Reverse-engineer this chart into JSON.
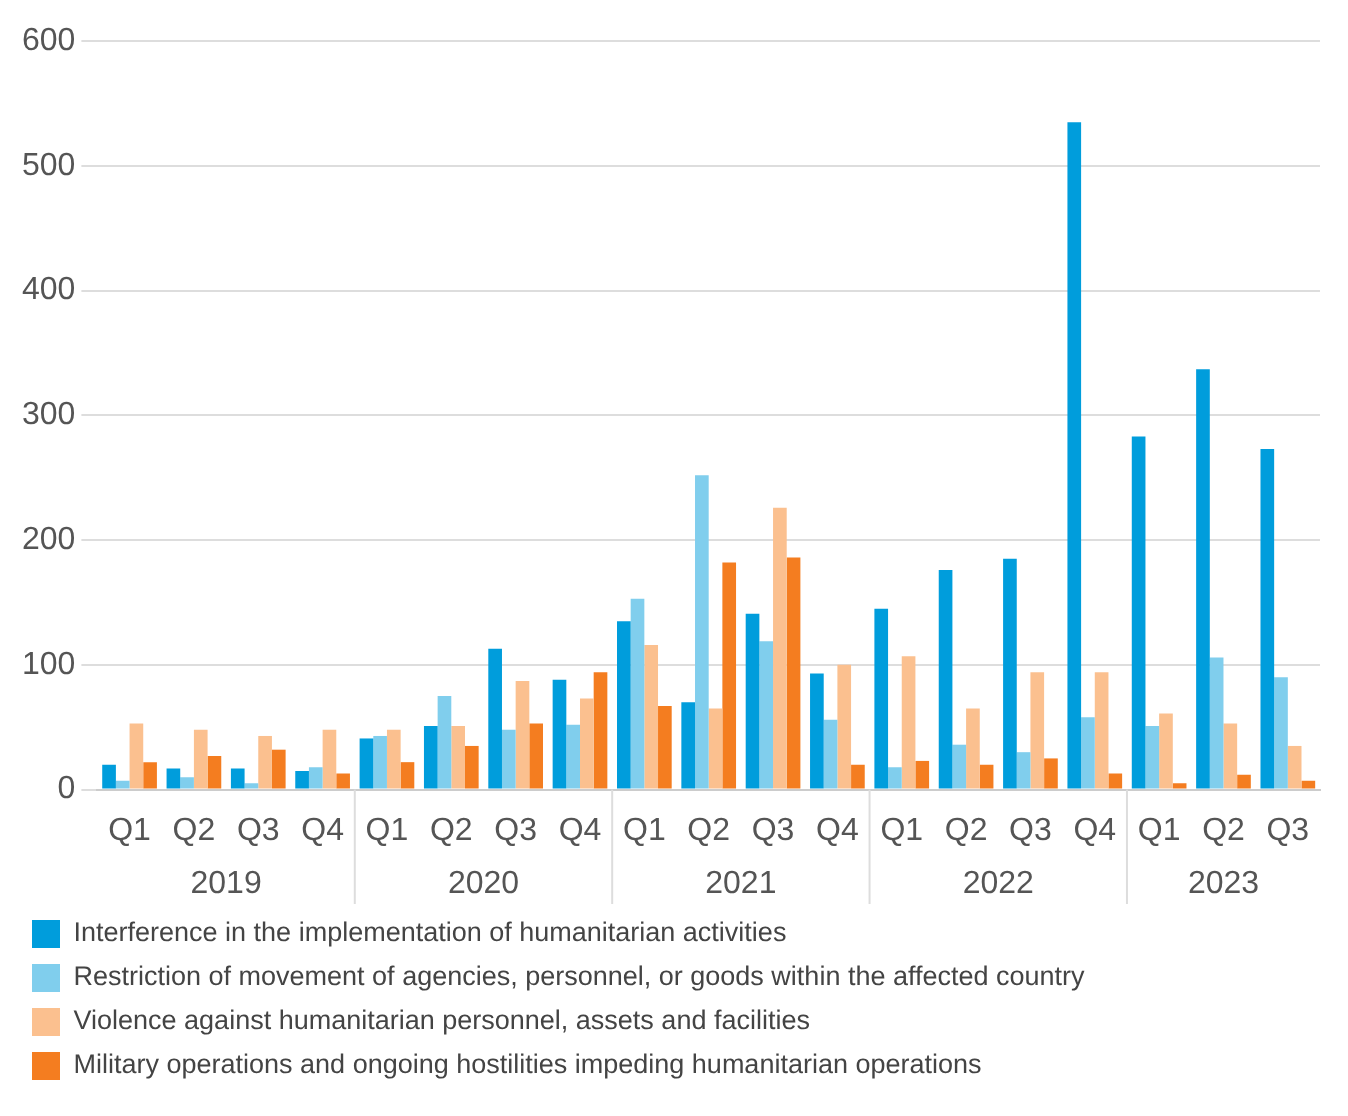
{
  "chart_data": {
    "type": "bar",
    "categories": [
      "Q1",
      "Q2",
      "Q3",
      "Q4",
      "Q1",
      "Q2",
      "Q3",
      "Q4",
      "Q1",
      "Q2",
      "Q3",
      "Q4",
      "Q1",
      "Q2",
      "Q3",
      "Q4",
      "Q1",
      "Q2",
      "Q3"
    ],
    "annotations": [
      "2019",
      "2020",
      "2021",
      "2022",
      "2023"
    ],
    "series": [
      {
        "name": "Interference in the implementation of humanitarian activities",
        "color": "#009ddc",
        "values": [
          20,
          17,
          17,
          15,
          41,
          51,
          113,
          88,
          135,
          70,
          141,
          93,
          145,
          176,
          185,
          535,
          283,
          337,
          273
        ]
      },
      {
        "name": "Restriction of movement of agencies, personnel, or goods within the affected country",
        "color": "#80ceed",
        "values": [
          7,
          10,
          5,
          18,
          43,
          75,
          48,
          52,
          153,
          252,
          119,
          56,
          18,
          36,
          30,
          58,
          51,
          106,
          90
        ]
      },
      {
        "name": "Violence against humanitarian personnel, assets and facilities",
        "color": "#fbc08f",
        "values": [
          53,
          48,
          43,
          48,
          48,
          51,
          87,
          73,
          116,
          65,
          226,
          100,
          107,
          65,
          94,
          94,
          61,
          53,
          35
        ]
      },
      {
        "name": "Military operations and ongoing hostilities impeding humanitarian operations",
        "color": "#f47d20",
        "values": [
          22,
          27,
          32,
          13,
          22,
          35,
          53,
          94,
          67,
          182,
          186,
          20,
          23,
          20,
          25,
          13,
          5,
          12,
          7
        ]
      }
    ],
    "ylim": [
      0,
      600
    ],
    "yticks": [
      0,
      100,
      200,
      300,
      400,
      500,
      600
    ],
    "grid": "y",
    "legend": "bottom"
  }
}
